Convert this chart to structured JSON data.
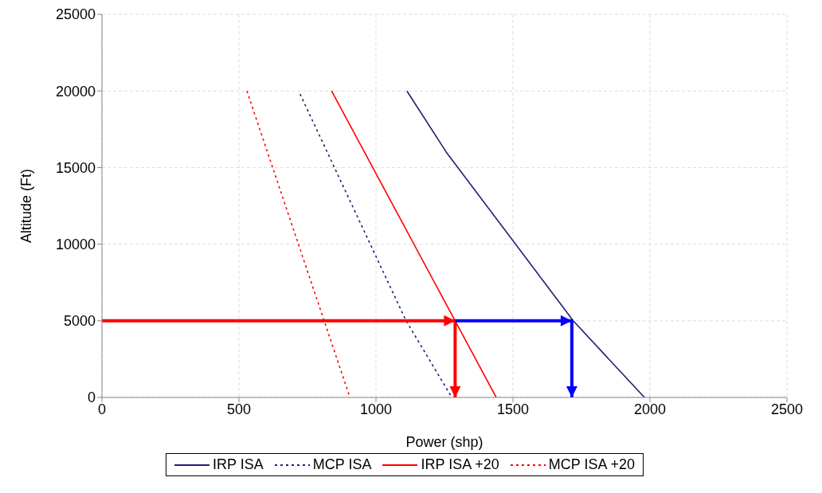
{
  "chart_data": {
    "type": "line",
    "xlabel": "Power (shp)",
    "ylabel": "Altitude (Ft)",
    "xlim": [
      0,
      2500
    ],
    "xticks": [
      0,
      500,
      1000,
      1500,
      2000,
      2500
    ],
    "ylim": [
      0,
      25000
    ],
    "yticks": [
      0,
      5000,
      10000,
      15000,
      20000,
      25000
    ],
    "grid": true,
    "legend": "bottom",
    "marker": "none",
    "series": [
      {
        "name": "IRP ISA",
        "color": "#1f1f7a",
        "line_style": "solid",
        "x": [
          1113,
          1257,
          1720,
          1980
        ],
        "values": [
          20000,
          16000,
          5000,
          0
        ]
      },
      {
        "name": "MCP ISA",
        "color": "#1f1f7a",
        "line_style": "dotted",
        "x": [
          723,
          1110,
          1277
        ],
        "values": [
          19800,
          5000,
          0
        ]
      },
      {
        "name": "IRP ISA +20",
        "color": "#ff0000",
        "line_style": "solid",
        "x": [
          838,
          1289,
          1439
        ],
        "values": [
          20000,
          5000,
          0
        ]
      },
      {
        "name": "MCP ISA +20",
        "color": "#ff0000",
        "line_style": "dotted",
        "x": [
          529,
          905
        ],
        "values": [
          20000,
          0
        ]
      },
      {
        "color": "#ff0000",
        "line_style": "solid",
        "x": [
          0,
          1289,
          1289
        ],
        "values": [
          5000,
          5000,
          0
        ]
      },
      {
        "color": "#0000ff",
        "line_style": "solid",
        "x": [
          1289,
          1715,
          1715
        ],
        "values": [
          5000,
          5000,
          0
        ]
      }
    ]
  }
}
